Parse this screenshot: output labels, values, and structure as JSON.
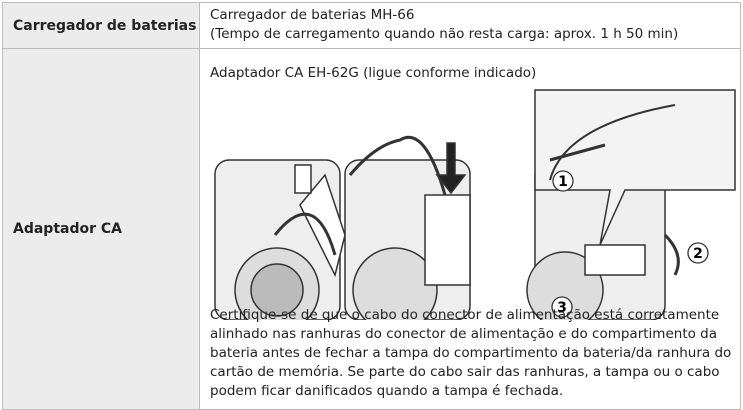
{
  "table": {
    "rows": [
      {
        "label": "Carregador de baterias",
        "lines": [
          "Carregador de baterias MH-66",
          "(Tempo de carregamento quando não resta carga: aprox. 1 h 50 min)"
        ]
      },
      {
        "label": "Adaptador CA",
        "caption": "Adaptador CA EH-62G (ligue conforme indicado)",
        "callouts": [
          "1",
          "2",
          "3"
        ],
        "lines": [
          "Certifique-se de que o cabo do conector de alimentação está corretamente",
          "alinhado nas ranhuras do conector de alimentação e do compartimento da",
          "bateria antes de fechar a tampa do compartimento da bateria/da ranhura do",
          "cartão de memória. Se parte do cabo sair das ranhuras, a tampa ou o cabo",
          "podem ficar danificados quando a tampa é fechada."
        ]
      }
    ]
  }
}
